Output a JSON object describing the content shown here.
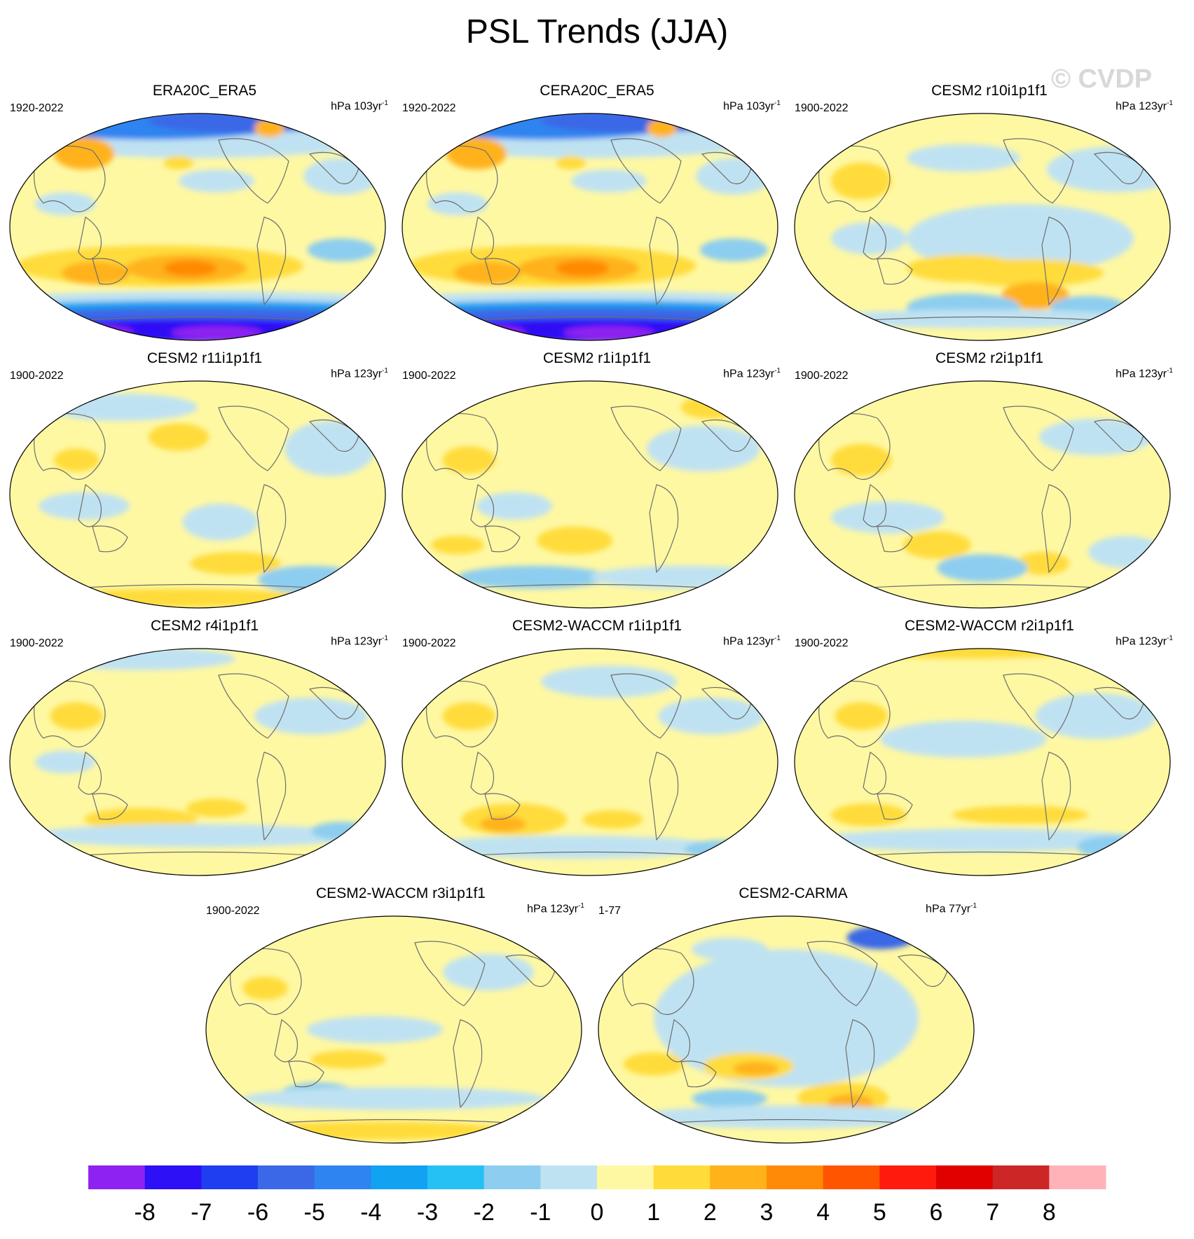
{
  "title": "PSL Trends (JJA)",
  "watermark": "© CVDP",
  "unit_prefix": "hPa",
  "unit_suffix": "yr",
  "unit_exponent": "-1",
  "chart_data": {
    "type": "heatmap",
    "title": "PSL Trends (JJA)",
    "colorbar": {
      "ticks": [
        "-8",
        "-7",
        "-6",
        "-5",
        "-4",
        "-3",
        "-2",
        "-1",
        "0",
        "1",
        "2",
        "3",
        "4",
        "5",
        "6",
        "7",
        "8"
      ],
      "colors": [
        "#8e22f0",
        "#2d10f5",
        "#1f3ef0",
        "#3b68e6",
        "#2e84f0",
        "#12a2f2",
        "#25c1f5",
        "#8dcdef",
        "#bfe2f2",
        "#fff8a3",
        "#ffdc3a",
        "#ffb21a",
        "#ff8a05",
        "#ff5500",
        "#ff1a0d",
        "#e00000",
        "#cc2626",
        "#ffb3b8"
      ],
      "levels": [
        -8,
        -7,
        -6,
        -5,
        -4,
        -3,
        -2,
        -1,
        0,
        1,
        2,
        3,
        4,
        5,
        6,
        7,
        8
      ]
    },
    "panels": [
      {
        "name": "ERA20C_ERA5",
        "period": "1920-2022",
        "units": "103"
      },
      {
        "name": "CERA20C_ERA5",
        "period": "1920-2022",
        "units": "103"
      },
      {
        "name": "CESM2 r10i1p1f1",
        "period": "1900-2022",
        "units": "123"
      },
      {
        "name": "CESM2 r11i1p1f1",
        "period": "1900-2022",
        "units": "123"
      },
      {
        "name": "CESM2 r1i1p1f1",
        "period": "1900-2022",
        "units": "123"
      },
      {
        "name": "CESM2 r2i1p1f1",
        "period": "1900-2022",
        "units": "123"
      },
      {
        "name": "CESM2 r4i1p1f1",
        "period": "1900-2022",
        "units": "123"
      },
      {
        "name": "CESM2-WACCM r1i1p1f1",
        "period": "1900-2022",
        "units": "123"
      },
      {
        "name": "CESM2-WACCM r2i1p1f1",
        "period": "1900-2022",
        "units": "123"
      },
      {
        "name": "CESM2-WACCM r3i1p1f1",
        "period": "1900-2022",
        "units": "123"
      },
      {
        "name": "CESM2-CARMA",
        "period": "1-77",
        "units": "77"
      }
    ]
  }
}
